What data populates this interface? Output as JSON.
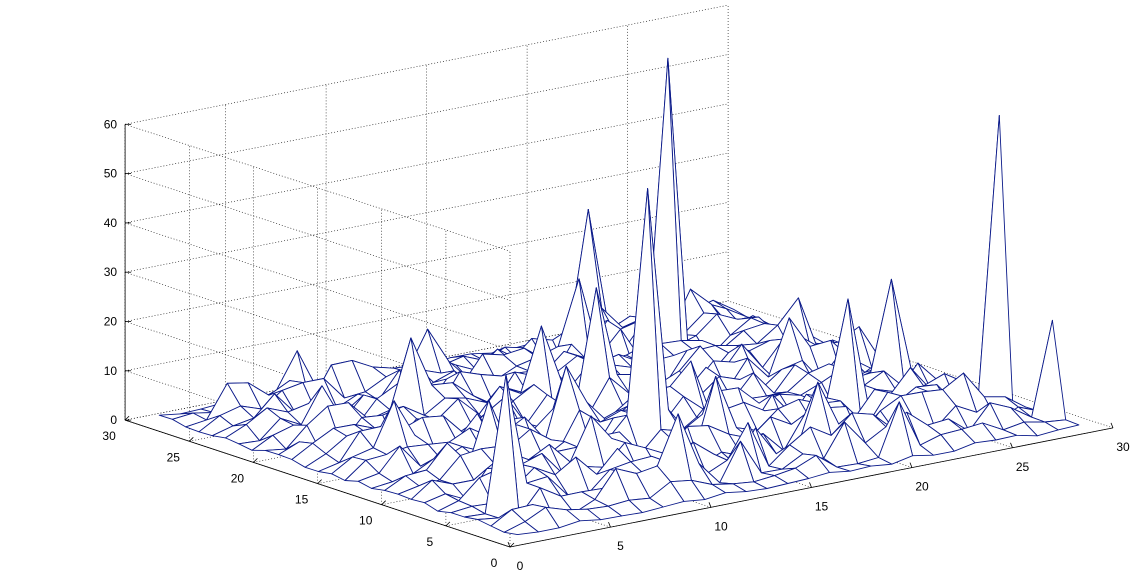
{
  "chart_data": {
    "type": "surface",
    "title": "",
    "xlabel": "",
    "ylabel": "",
    "zlabel": "",
    "grid": true,
    "xlim": [
      0,
      30
    ],
    "ylim": [
      0,
      30
    ],
    "zlim": [
      0,
      60
    ],
    "x_ticks": [
      "0",
      "5",
      "10",
      "15",
      "20",
      "25",
      "30"
    ],
    "y_ticks": [
      "0",
      "5",
      "10",
      "15",
      "20",
      "25",
      "30"
    ],
    "z_ticks": [
      "0",
      "10",
      "20",
      "30",
      "40",
      "50",
      "60"
    ],
    "grid_size": [
      28,
      28
    ],
    "mesh_color": "#0c1b8a",
    "highlight_color": "#40d0f0",
    "background_noise_range": [
      0,
      8
    ],
    "peaks": [
      {
        "x": 20,
        "y": 20,
        "z": 63
      },
      {
        "x": 27,
        "y": 6,
        "z": 58
      },
      {
        "x": 12,
        "y": 9,
        "z": 53
      },
      {
        "x": 2,
        "y": 4,
        "z": 28
      },
      {
        "x": 20,
        "y": 26,
        "z": 27
      },
      {
        "x": 14,
        "y": 16,
        "z": 25
      },
      {
        "x": 21,
        "y": 8,
        "z": 24
      },
      {
        "x": 25,
        "y": 11,
        "z": 22
      },
      {
        "x": 27,
        "y": 2,
        "z": 20
      },
      {
        "x": 17,
        "y": 22,
        "z": 19
      },
      {
        "x": 12,
        "y": 17,
        "z": 18
      },
      {
        "x": 7,
        "y": 19,
        "z": 18
      },
      {
        "x": 10,
        "y": 12,
        "z": 16
      },
      {
        "x": 9,
        "y": 2,
        "z": 16
      },
      {
        "x": 14,
        "y": 7,
        "z": 15
      },
      {
        "x": 5,
        "y": 10,
        "z": 15
      },
      {
        "x": 17,
        "y": 4,
        "z": 14
      },
      {
        "x": 22,
        "y": 14,
        "z": 14
      },
      {
        "x": 3,
        "y": 14,
        "z": 13
      },
      {
        "x": 11,
        "y": 24,
        "z": 12
      },
      {
        "x": 25,
        "y": 18,
        "z": 12
      },
      {
        "x": 8,
        "y": 7,
        "z": 12
      },
      {
        "x": 16,
        "y": 12,
        "z": 12
      },
      {
        "x": 23,
        "y": 23,
        "z": 11
      },
      {
        "x": 19,
        "y": 1,
        "z": 11
      },
      {
        "x": 6,
        "y": 26,
        "z": 10
      },
      {
        "x": 13,
        "y": 3,
        "z": 10
      },
      {
        "x": 24,
        "y": 4,
        "z": 10
      },
      {
        "x": 4,
        "y": 21,
        "z": 9
      },
      {
        "x": 19,
        "y": 16,
        "z": 9
      },
      {
        "x": 26,
        "y": 15,
        "z": 8
      },
      {
        "x": 9,
        "y": 15,
        "z": 8
      },
      {
        "x": 15,
        "y": 19,
        "z": 7
      }
    ]
  }
}
